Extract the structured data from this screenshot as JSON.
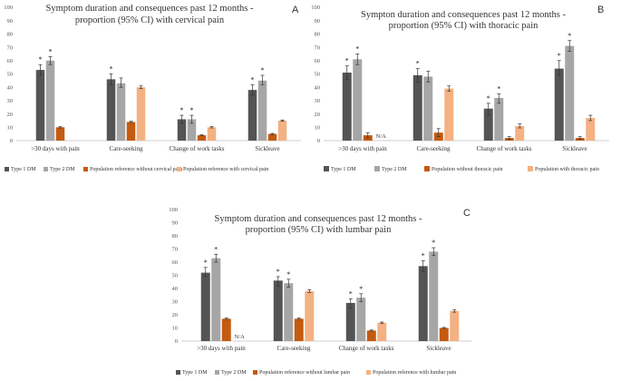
{
  "figure": {
    "series_names": [
      "Type 1 DM",
      "Type 2 DM",
      "Population reference without pain",
      "Population reference with pain"
    ],
    "colors": [
      "#545454",
      "#a6a6a6",
      "#c55a11",
      "#f4b183"
    ]
  },
  "chart_data": [
    {
      "type": "bar",
      "panel": "A",
      "title": [
        "Symptom duration and consequences past 12 months -",
        "proportion (95% CI) with cervical pain"
      ],
      "categories": [
        ">30 days with pain",
        "Care-seeking",
        "Change of work tasks",
        "Sickleave"
      ],
      "ylim": [
        0,
        100
      ],
      "yticks": [
        0,
        10,
        20,
        30,
        40,
        50,
        60,
        70,
        80,
        90,
        100
      ],
      "series": [
        {
          "name": "Type 1 DM",
          "values": [
            53,
            46,
            16,
            38
          ],
          "ci": [
            [
              49,
              57
            ],
            [
              42,
              50
            ],
            [
              13,
              19
            ],
            [
              34,
              42
            ]
          ],
          "significant": [
            true,
            true,
            true,
            true
          ]
        },
        {
          "name": "Type 2 DM",
          "values": [
            60,
            43,
            16,
            45
          ],
          "ci": [
            [
              57,
              63
            ],
            [
              40,
              47
            ],
            [
              13,
              19
            ],
            [
              42,
              49
            ]
          ],
          "significant": [
            true,
            false,
            true,
            true
          ]
        },
        {
          "name": "Population reference without cervical pain",
          "values": [
            10,
            14,
            4,
            5
          ],
          "ci": [
            [
              9.5,
              10.5
            ],
            [
              13.5,
              14.5
            ],
            [
              3.6,
              4.4
            ],
            [
              4.6,
              5.4
            ]
          ],
          "significant": [
            false,
            false,
            false,
            false
          ]
        },
        {
          "name": "Population reference with cervical pain",
          "values": [
            null,
            40,
            10,
            15
          ],
          "ci": [
            null,
            [
              39,
              41
            ],
            [
              9.5,
              10.5
            ],
            [
              14.5,
              15.5
            ]
          ],
          "significant": [
            false,
            false,
            false,
            false
          ]
        }
      ],
      "na_labels": [],
      "legend": [
        "Type 1 DM",
        "Type 2 DM",
        "Population reference without cervical pain",
        "Population reference with cervical pain"
      ]
    },
    {
      "type": "bar",
      "panel": "B",
      "title": [
        "Sympton duration and consequences past 12 months -",
        "proportion (95% CI) with thoracic pain"
      ],
      "categories": [
        ">30 days with pain",
        "Care-seeking",
        "Change of work tasks",
        "Sickleave"
      ],
      "ylim": [
        0,
        100
      ],
      "yticks": [
        0,
        10,
        20,
        30,
        40,
        50,
        60,
        70,
        80,
        90,
        100
      ],
      "series": [
        {
          "name": "Type 1 DM",
          "values": [
            51,
            49,
            24,
            54
          ],
          "ci": [
            [
              46,
              56
            ],
            [
              44,
              54
            ],
            [
              19,
              28
            ],
            [
              49,
              60
            ]
          ],
          "significant": [
            true,
            true,
            true,
            true
          ]
        },
        {
          "name": "Type 2 DM",
          "values": [
            61,
            48,
            32,
            71
          ],
          "ci": [
            [
              57,
              65
            ],
            [
              44,
              52
            ],
            [
              28,
              35
            ],
            [
              67,
              75
            ]
          ],
          "significant": [
            true,
            false,
            true,
            true
          ]
        },
        {
          "name": "Population without thoracic pain",
          "values": [
            4,
            6,
            2,
            2
          ],
          "ci": [
            [
              2,
              6
            ],
            [
              3,
              9
            ],
            [
              1,
              3
            ],
            [
              1,
              3
            ]
          ],
          "significant": [
            false,
            false,
            false,
            false
          ]
        },
        {
          "name": "Population with thoracic pain",
          "values": [
            null,
            39,
            11,
            17
          ],
          "ci": [
            null,
            [
              37,
              41
            ],
            [
              9.5,
              12.5
            ],
            [
              15,
              19
            ]
          ],
          "significant": [
            false,
            false,
            false,
            false
          ]
        }
      ],
      "na_labels": [
        {
          "category": 0,
          "series": 3,
          "text": "N/A"
        }
      ],
      "legend": [
        "Type 1 DM",
        "Type 2 DM",
        "Population without thoracic pain",
        "Population with thoracic pain"
      ]
    },
    {
      "type": "bar",
      "panel": "C",
      "title": [
        "Symptom duration and consequences past 12 months -",
        "proportion (95% CI) with lumbar pain"
      ],
      "categories": [
        ">30 days with pain",
        "Care-seeking",
        "Change of work tasks",
        "Sickleave"
      ],
      "ylim": [
        0,
        100
      ],
      "yticks": [
        0,
        10,
        20,
        30,
        40,
        50,
        60,
        70,
        80,
        90,
        100
      ],
      "series": [
        {
          "name": "Type 1 DM",
          "values": [
            52,
            46,
            29,
            57
          ],
          "ci": [
            [
              49,
              56
            ],
            [
              42,
              49
            ],
            [
              25,
              32
            ],
            [
              53,
              61
            ]
          ],
          "significant": [
            true,
            true,
            true,
            true
          ]
        },
        {
          "name": "Type 2 DM",
          "values": [
            63,
            44,
            33,
            68
          ],
          "ci": [
            [
              60,
              66
            ],
            [
              41,
              47
            ],
            [
              30,
              36
            ],
            [
              65,
              71
            ]
          ],
          "significant": [
            true,
            true,
            true,
            true
          ]
        },
        {
          "name": "Population reference without lumbar pain",
          "values": [
            17,
            17,
            8,
            10
          ],
          "ci": [
            [
              16.5,
              17.5
            ],
            [
              16.5,
              17.5
            ],
            [
              7.6,
              8.4
            ],
            [
              9.6,
              10.4
            ]
          ],
          "significant": [
            false,
            false,
            false,
            false
          ]
        },
        {
          "name": "Population reference with lumbar pain",
          "values": [
            null,
            38,
            14,
            23
          ],
          "ci": [
            null,
            [
              37,
              39
            ],
            [
              13.5,
              14.5
            ],
            [
              22,
              24
            ]
          ],
          "significant": [
            false,
            false,
            false,
            false
          ]
        }
      ],
      "na_labels": [
        {
          "category": 0,
          "series": 3,
          "text": "N/A"
        }
      ],
      "legend": [
        "Type 1 DM",
        "Type 2 DM",
        "Population reference without lumbar pain",
        "Population reference with lumbar pain"
      ]
    }
  ]
}
